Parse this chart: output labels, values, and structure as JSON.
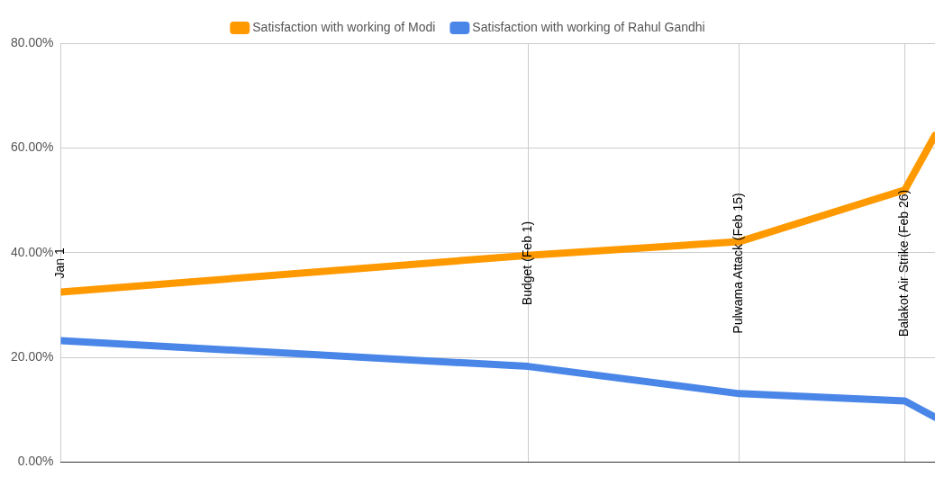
{
  "chart_data": {
    "type": "line",
    "x": [
      "--01-01",
      "--02-01",
      "--02-15",
      "--02-26",
      "--02-28"
    ],
    "series": [
      {
        "name": "Satisfaction with working of Modi",
        "color": "#ff9900",
        "values": [
          32.5,
          39.5,
          42.1,
          52,
          62.4
        ]
      },
      {
        "name": "Satisfaction with working of Rahul Gandhi",
        "color": "#4a86e8",
        "values": [
          23.2,
          18.3,
          13.1,
          11.7,
          8.6
        ]
      }
    ],
    "xlim": [
      "--01-01",
      "--02-28"
    ],
    "xticks": [
      {
        "value": "--01-01",
        "label": "Jan 1"
      },
      {
        "value": "--02-01",
        "label": "Budget (Feb 1)"
      },
      {
        "value": "--02-15",
        "label": "Pulwama Attack (Feb 15)"
      },
      {
        "value": "--02-26",
        "label": "Balakot Air Strike (Feb 26)"
      }
    ],
    "ylim": [
      0,
      80
    ],
    "yticks": [
      {
        "value": 0,
        "label": "0.00%"
      },
      {
        "value": 20,
        "label": "20.00%"
      },
      {
        "value": 40,
        "label": "40.00%"
      },
      {
        "value": 60,
        "label": "60.00%"
      },
      {
        "value": 80,
        "label": "80.00%"
      }
    ],
    "grid": true,
    "legend": "top",
    "marker": "none",
    "line_style": "solid"
  }
}
